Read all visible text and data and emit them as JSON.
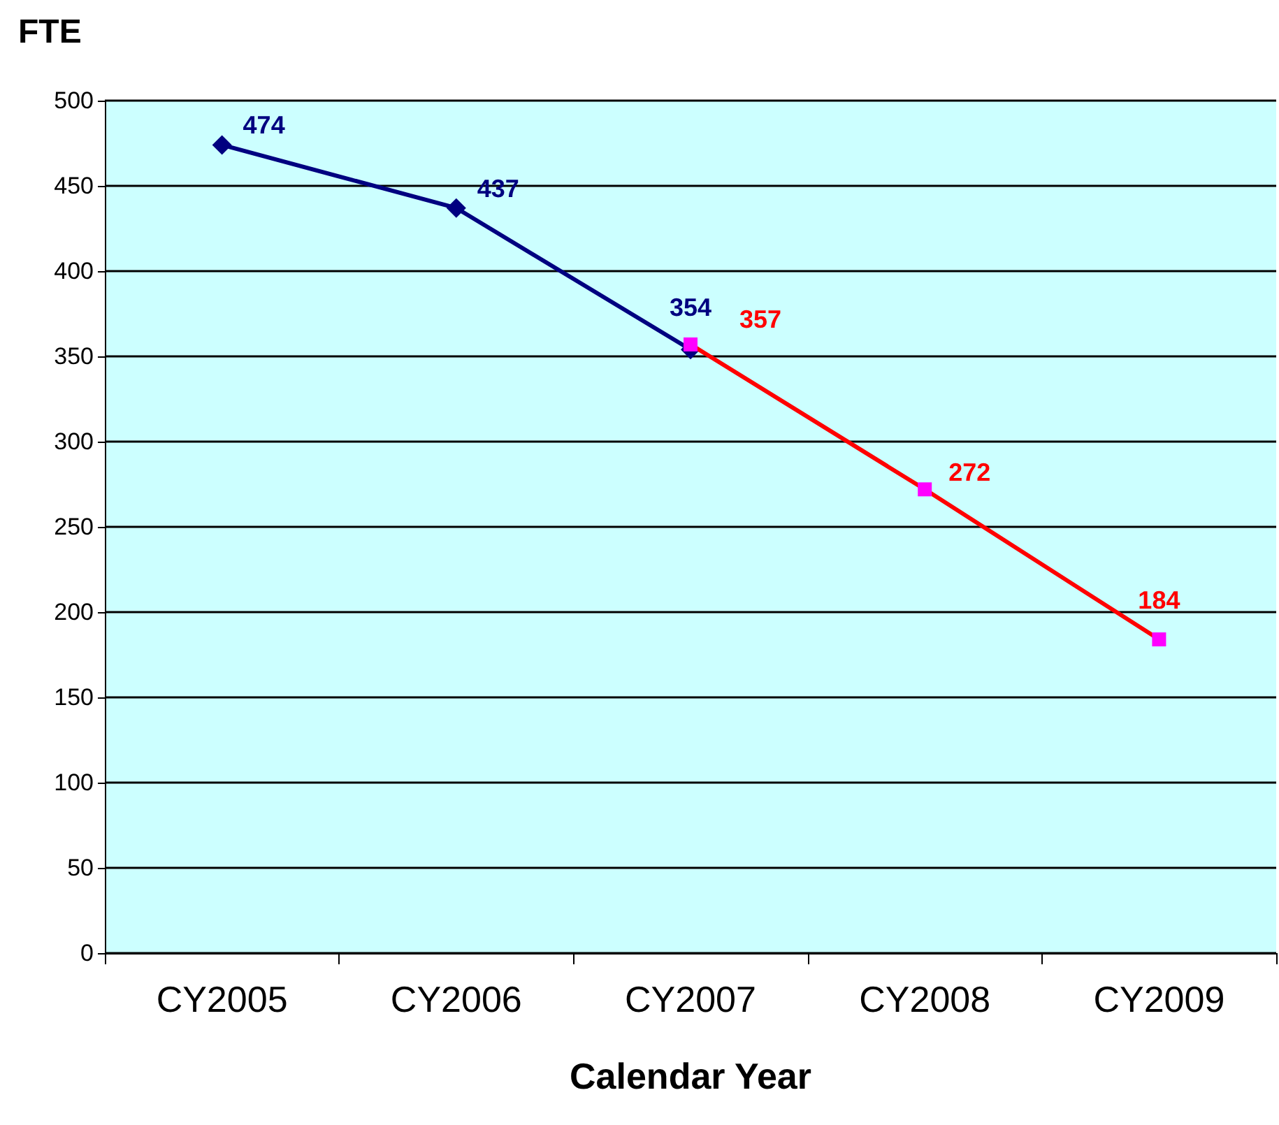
{
  "chart_data": {
    "type": "line",
    "title": "FTE",
    "xlabel": "Calendar Year",
    "categories": [
      "CY2005",
      "CY2006",
      "CY2007",
      "CY2008",
      "CY2009"
    ],
    "series": [
      {
        "color": "#000080",
        "colors": [
          "#000080",
          "#000080",
          "#000080",
          null,
          null
        ],
        "marker": "diamond",
        "values": [
          474,
          437,
          354,
          null,
          null
        ]
      },
      {
        "color": "#ff0000",
        "colors": [
          null,
          null,
          "#ff00ff",
          "#ff00ff",
          "#ff00ff"
        ],
        "marker": "square",
        "values": [
          null,
          null,
          357,
          272,
          184
        ]
      }
    ],
    "ylim": [
      0,
      500
    ],
    "yticks": [
      0,
      50,
      100,
      150,
      200,
      250,
      300,
      350,
      400,
      450,
      500
    ],
    "grid": "y",
    "data_labels": true
  }
}
